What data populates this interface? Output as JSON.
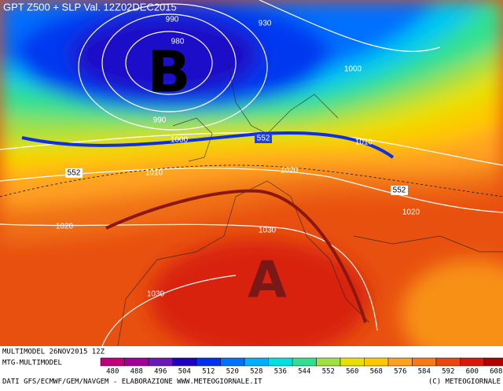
{
  "header": {
    "title": "GPT Z500 + SLP Val. 12Z02DEC2015"
  },
  "map": {
    "highs_lows": [
      "B",
      "A"
    ],
    "contour_labels": [
      990,
      980,
      930,
      1000,
      990,
      1000,
      552,
      1010,
      552,
      1010,
      1020,
      552,
      1020,
      1020,
      1030,
      1030
    ]
  },
  "legend": {
    "values": [
      480,
      488,
      496,
      504,
      512,
      520,
      528,
      536,
      544,
      552,
      560,
      568,
      576,
      584,
      592,
      600,
      608
    ],
    "colors": [
      "#c0007a",
      "#a00098",
      "#6a18b8",
      "#2000c0",
      "#0030f0",
      "#0070ff",
      "#00b0ff",
      "#00e0e0",
      "#30e090",
      "#a0e040",
      "#e8e000",
      "#ffc800",
      "#ffa020",
      "#f87818",
      "#e84810",
      "#d81808",
      "#b00000"
    ]
  },
  "footer": {
    "run": "MULTIMODEL 26NOV2015 12Z",
    "model": "MTG-MULTIMODEL",
    "source": "DATI GFS/ECMWF/GEM/NAVGEM - ELABORAZIONE WWW.METEOGIORNALE.IT",
    "copyright": "(C) METEOGIORNALE"
  }
}
